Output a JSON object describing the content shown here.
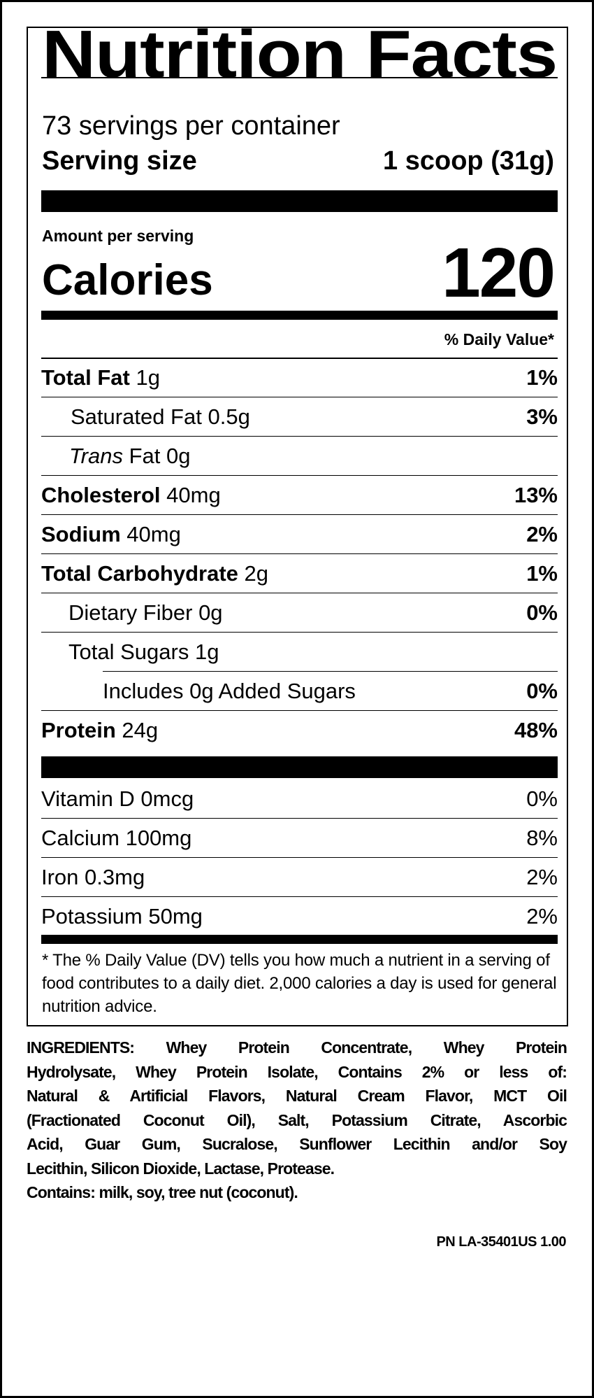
{
  "title": "Nutrition Facts",
  "servings_per_container": "73 servings per container",
  "serving_size_label": "Serving size",
  "serving_size_value": "1 scoop (31g)",
  "amount_per_serving": "Amount per serving",
  "calories_label": "Calories",
  "calories_value": "120",
  "dv_header": "% Daily Value*",
  "nutrients": [
    {
      "name": "Total Fat",
      "amount": "1g",
      "dv": "1%"
    },
    {
      "name": "Saturated Fat",
      "amount": "0.5g",
      "dv": "3%"
    },
    {
      "name": "Trans",
      "name_rest": "Fat",
      "amount": "0g",
      "dv": ""
    },
    {
      "name": "Cholesterol",
      "amount": "40mg",
      "dv": "13%"
    },
    {
      "name": "Sodium",
      "amount": "40mg",
      "dv": "2%"
    },
    {
      "name": "Total Carbohydrate",
      "amount": "2g",
      "dv": "1%"
    },
    {
      "name": "Dietary Fiber",
      "amount": "0g",
      "dv": "0%"
    },
    {
      "name": "Total Sugars",
      "amount": "1g",
      "dv": ""
    },
    {
      "name": "Includes 0g Added Sugars",
      "amount": "",
      "dv": "0%"
    },
    {
      "name": "Protein",
      "amount": "24g",
      "dv": "48%"
    }
  ],
  "vitamins": [
    {
      "name": "Vitamin D 0mcg",
      "dv": "0%"
    },
    {
      "name": "Calcium 100mg",
      "dv": "8%"
    },
    {
      "name": "Iron 0.3mg",
      "dv": "2%"
    },
    {
      "name": "Potassium 50mg",
      "dv": "2%"
    }
  ],
  "footnote": "* The % Daily Value (DV) tells you how much a nutrient in a serving of food contributes to a daily diet. 2,000 calories a day is used for general nutrition advice.",
  "ingredients_lines": [
    "INGREDIENTS: Whey Protein Concentrate, Whey Protein",
    "Hydrolysate, Whey Protein Isolate, Contains 2% or less of:",
    "Natural & Artificial Flavors, Natural Cream Flavor, MCT Oil",
    "(Fractionated Coconut Oil), Salt, Potassium Citrate, Ascorbic",
    "Acid, Guar Gum, Sucralose, Sunflower Lecithin and/or Soy",
    "Lecithin, Silicon Dioxide, Lactase, Protease."
  ],
  "contains": "Contains: milk, soy, tree nut (coconut).",
  "part_number": "PN LA-35401US 1.00"
}
